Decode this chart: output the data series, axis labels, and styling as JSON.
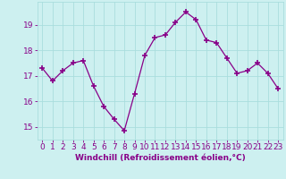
{
  "x": [
    0,
    1,
    2,
    3,
    4,
    5,
    6,
    7,
    8,
    9,
    10,
    11,
    12,
    13,
    14,
    15,
    16,
    17,
    18,
    19,
    20,
    21,
    22,
    23
  ],
  "y": [
    17.3,
    16.8,
    17.2,
    17.5,
    17.6,
    16.6,
    15.8,
    15.3,
    14.85,
    16.3,
    17.8,
    18.5,
    18.6,
    19.1,
    19.5,
    19.2,
    18.4,
    18.3,
    17.7,
    17.1,
    17.2,
    17.5,
    17.1,
    16.5
  ],
  "line_color": "#880088",
  "marker": "+",
  "marker_size": 4,
  "marker_lw": 1.2,
  "bg_color": "#cdf0f0",
  "grid_color": "#aadddd",
  "xlabel": "Windchill (Refroidissement éolien,°C)",
  "xlabel_fontsize": 6.5,
  "tick_fontsize": 6.5,
  "ylabel_ticks": [
    15,
    16,
    17,
    18,
    19
  ],
  "ylim": [
    14.5,
    19.9
  ],
  "xlim": [
    -0.5,
    23.5
  ]
}
